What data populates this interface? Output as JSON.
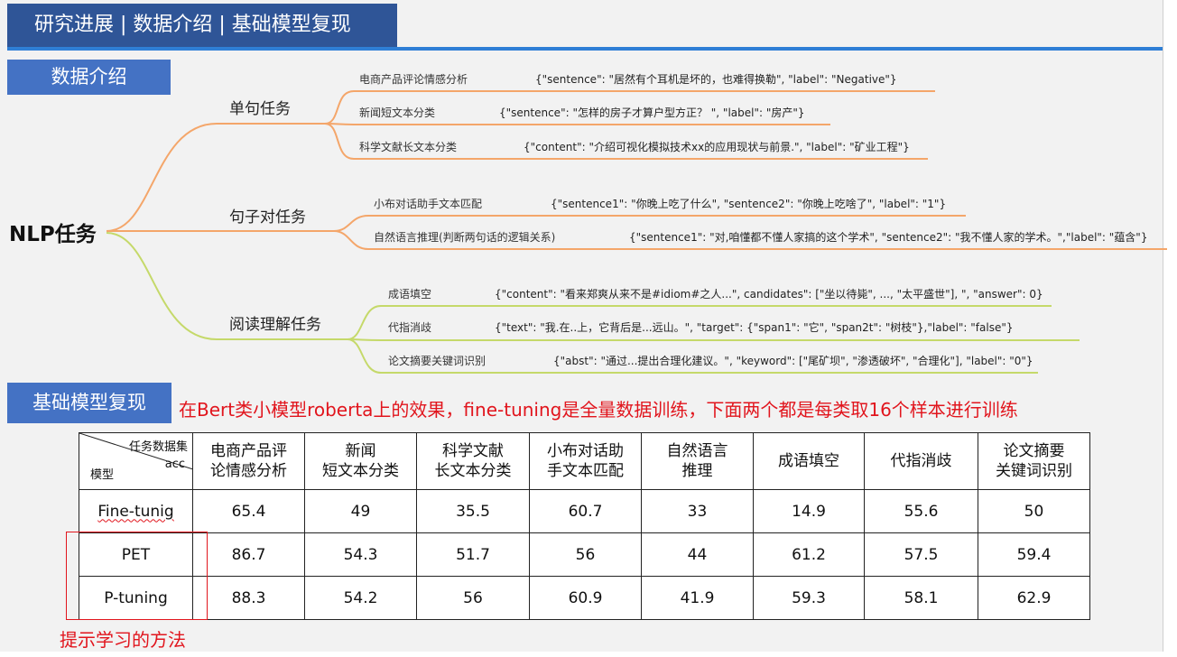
{
  "header": {
    "title": "研究进展 | 数据介绍 | 基础模型复现"
  },
  "colors": {
    "banner": "#2f5597",
    "tag": "#4472c4",
    "rule": "#2f7fd6",
    "branch_orange": "#f4a66a",
    "branch_green": "#c5d96a",
    "highlight_red": "#e1151d"
  },
  "section_data": {
    "label": "数据介绍"
  },
  "mindmap": {
    "root": "NLP任务",
    "branches": [
      {
        "label": "单句任务",
        "leaves": [
          {
            "label": "电商产品评论情感分析",
            "example": "{\"sentence\": \"居然有个耳机是坏的，也难得换勒\", \"label\": \"Negative\"}"
          },
          {
            "label": "新闻短文本分类",
            "example": "{\"sentence\": \"怎样的房子才算户型方正？ \", \"label\": \"房产\"}"
          },
          {
            "label": "科学文献长文本分类",
            "example": "{\"content\": \"介绍可视化模拟技术xx的应用现状与前景.\", \"label\": \"矿业工程\"}"
          }
        ]
      },
      {
        "label": "句子对任务",
        "leaves": [
          {
            "label": "小布对话助手文本匹配",
            "example": "{\"sentence1\": \"你晚上吃了什么\", \"sentence2\": \"你晚上吃啥了\", \"label\": \"1\"}"
          },
          {
            "label": "自然语言推理(判断两句话的逻辑关系)",
            "example": "{\"sentence1\": \"对,咱懂都不懂人家搞的这个学术\", \"sentence2\": \"我不懂人家的学术。\",\"label\": \"蕴含\"}"
          }
        ]
      },
      {
        "label": "阅读理解任务",
        "leaves": [
          {
            "label": "成语填空",
            "example": "{\"content\": \"看来郑爽从来不是#idiom#之人...\", candidates\": [\"坐以待毙\", ..., \"太平盛世\"], \", \"answer\": 0}"
          },
          {
            "label": "代指消歧",
            "example": "{\"text\": \"我.在..上，它背后是...远山。\", \"target\": {\"span1\": \"它\", \"span2t\": \"树枝\"},\"label\": \"false\"}"
          },
          {
            "label": "论文摘要关键词识别",
            "example": "{\"abst\": \"通过...提出合理化建议。\", \"keyword\": [\"尾矿坝\", \"渗透破坏\", \"合理化\"], \"label\": \"0\"}"
          }
        ]
      }
    ]
  },
  "section_model": {
    "label": "基础模型复现"
  },
  "note": "在Bert类小模型roberta上的效果，fine-tuning是全量数据训练，下面两个都是每类取16个样本进行训练",
  "table": {
    "corner": {
      "top": "任务数据集",
      "mid": "acc",
      "left": "模型"
    },
    "headers": [
      [
        "电商产品评",
        "论情感分析"
      ],
      [
        "新闻",
        "短文本分类"
      ],
      [
        "科学文献",
        "长文本分类"
      ],
      [
        "小布对话助",
        "手文本匹配"
      ],
      [
        "自然语言",
        "推理"
      ],
      [
        "成语填空"
      ],
      [
        "代指消歧"
      ],
      [
        "论文摘要",
        "关键词识别"
      ]
    ],
    "rows": [
      {
        "model": "Fine-tunig",
        "values": [
          "65.4",
          "49",
          "35.5",
          "60.7",
          "33",
          "14.9",
          "55.6",
          "50"
        ]
      },
      {
        "model": "PET",
        "values": [
          "86.7",
          "54.3",
          "51.7",
          "56",
          "44",
          "61.2",
          "57.5",
          "59.4"
        ]
      },
      {
        "model": "P-tuning",
        "values": [
          "88.3",
          "54.2",
          "56",
          "60.9",
          "41.9",
          "59.3",
          "58.1",
          "62.9"
        ]
      }
    ]
  },
  "method_note": "提示学习的方法"
}
